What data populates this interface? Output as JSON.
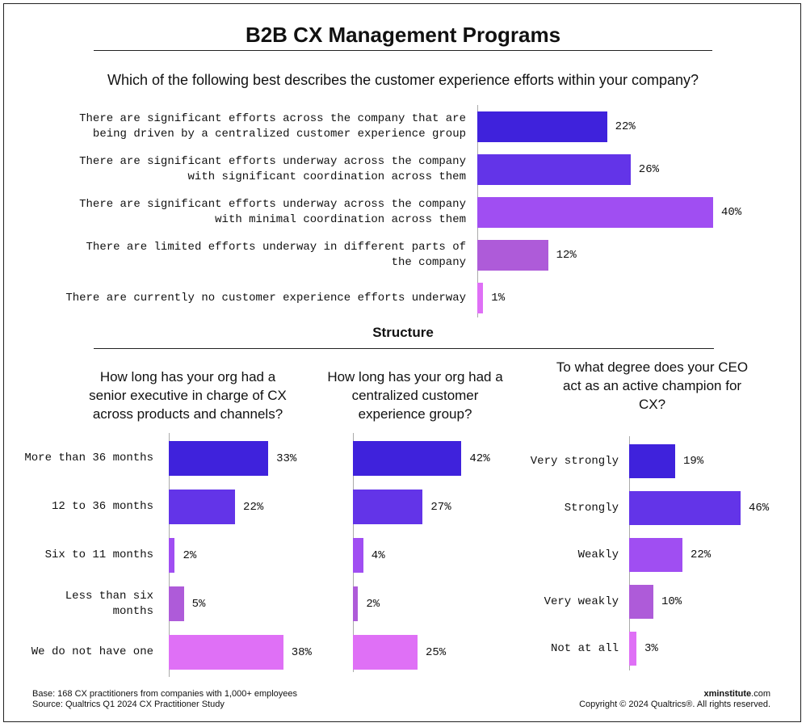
{
  "title": "B2B CX Management Programs",
  "section_title": "Structure",
  "footer": {
    "base": "Base: 168 CX practitioners from companies with 1,000+ employees",
    "source": "Source: Qualtrics Q1 2024 CX Practitioner Study",
    "site_bold": "xminstitute",
    "site_rest": ".com",
    "copyright": "Copyright © 2024 Qualtrics®. All rights reserved."
  },
  "chart_data": [
    {
      "type": "bar",
      "orientation": "horizontal",
      "title": "Which of the following best describes the customer experience efforts within your company?",
      "categories": [
        "There are significant efforts across the company that are being driven by a centralized customer experience group",
        "There are significant efforts underway across the company with significant coordination across them",
        "There are significant efforts underway across the company with minimal coordination across them",
        "There are limited efforts underway in different parts of the company",
        "There are currently no customer experience efforts underway"
      ],
      "values": [
        22,
        26,
        40,
        12,
        1
      ],
      "value_labels": [
        "22%",
        "26%",
        "40%",
        "12%",
        "1%"
      ],
      "colors": [
        "#3f22dc",
        "#6334e8",
        "#a04ef2",
        "#ae5bd9",
        "#df70f6"
      ]
    },
    {
      "type": "bar",
      "orientation": "horizontal",
      "title": "How long has your org had a senior executive in charge of CX across products and channels?",
      "categories": [
        "More than 36 months",
        "12 to 36 months",
        "Six to 11 months",
        "Less than six months",
        "We do not have one"
      ],
      "values": [
        33,
        22,
        2,
        5,
        38
      ],
      "value_labels": [
        "33%",
        "22%",
        "2%",
        "5%",
        "38%"
      ],
      "colors": [
        "#3f22dc",
        "#6334e8",
        "#a04ef2",
        "#ae5bd9",
        "#df70f6"
      ]
    },
    {
      "type": "bar",
      "orientation": "horizontal",
      "title": "How long has your org had a centralized customer experience group?",
      "categories": [
        null,
        null,
        null,
        null,
        null
      ],
      "values": [
        42,
        27,
        4,
        2,
        25
      ],
      "value_labels": [
        "42%",
        "27%",
        "4%",
        "2%",
        "25%"
      ],
      "colors": [
        "#3f22dc",
        "#6334e8",
        "#a04ef2",
        "#ae5bd9",
        "#df70f6"
      ]
    },
    {
      "type": "bar",
      "orientation": "horizontal",
      "title": "To what degree does your CEO act as an active champion for CX?",
      "categories": [
        "Very strongly",
        "Strongly",
        "Weakly",
        "Very weakly",
        "Not at all"
      ],
      "values": [
        19,
        46,
        22,
        10,
        3
      ],
      "value_labels": [
        "19%",
        "46%",
        "22%",
        "10%",
        "3%"
      ],
      "colors": [
        "#3f22dc",
        "#6334e8",
        "#a04ef2",
        "#ae5bd9",
        "#df70f6"
      ]
    }
  ]
}
